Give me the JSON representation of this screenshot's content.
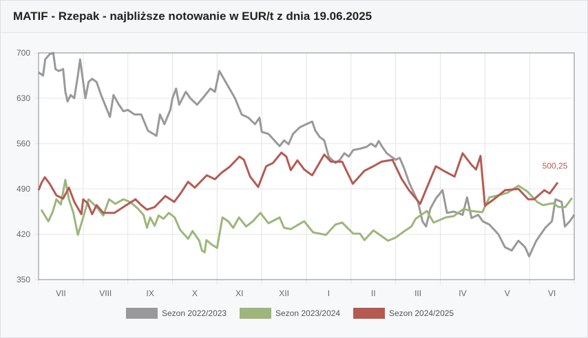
{
  "header": {
    "title": "MATIF - Rzepak - najbliższe notowanie w EUR/t z dnia 19.06.2025"
  },
  "chart_data": {
    "type": "line",
    "title": "MATIF - Rzepak - najbliższe notowanie w EUR/t z dnia 19.06.2025",
    "xlabel": "",
    "ylabel": "",
    "ylim": [
      350,
      700
    ],
    "yticks": [
      "350",
      "420",
      "490",
      "560",
      "630",
      "700"
    ],
    "yticks_values": [
      350,
      420,
      490,
      560,
      630,
      700
    ],
    "categories": [
      "VII",
      "VIII",
      "IX",
      "X",
      "XI",
      "XII",
      "I",
      "II",
      "III",
      "IV",
      "V",
      "VI"
    ],
    "x_unit": "months since start of season (0 = start of July)",
    "xlim": [
      0,
      12
    ],
    "grid": true,
    "legend_position": "bottom",
    "last_value_label": "500,25",
    "series": [
      {
        "name": "Sezon 2022/2023",
        "color": "#999999",
        "points": [
          [
            0,
            670
          ],
          [
            0.1,
            665
          ],
          [
            0.15,
            690
          ],
          [
            0.25,
            698
          ],
          [
            0.33,
            700
          ],
          [
            0.38,
            675
          ],
          [
            0.45,
            672
          ],
          [
            0.55,
            675
          ],
          [
            0.6,
            640
          ],
          [
            0.65,
            625
          ],
          [
            0.72,
            635
          ],
          [
            0.8,
            630
          ],
          [
            0.88,
            665
          ],
          [
            0.93,
            690
          ],
          [
            1.0,
            655
          ],
          [
            1.05,
            630
          ],
          [
            1.12,
            655
          ],
          [
            1.2,
            660
          ],
          [
            1.3,
            655
          ],
          [
            1.4,
            635
          ],
          [
            1.6,
            601
          ],
          [
            1.68,
            635
          ],
          [
            1.8,
            620
          ],
          [
            1.9,
            610
          ],
          [
            2.0,
            612
          ],
          [
            2.15,
            605
          ],
          [
            2.3,
            605
          ],
          [
            2.45,
            580
          ],
          [
            2.64,
            572
          ],
          [
            2.72,
            605
          ],
          [
            2.82,
            590
          ],
          [
            2.95,
            612
          ],
          [
            3.0,
            630
          ],
          [
            3.08,
            645
          ],
          [
            3.15,
            620
          ],
          [
            3.3,
            640
          ],
          [
            3.4,
            630
          ],
          [
            3.55,
            620
          ],
          [
            3.7,
            632
          ],
          [
            3.85,
            645
          ],
          [
            3.95,
            640
          ],
          [
            4.05,
            672
          ],
          [
            4.15,
            660
          ],
          [
            4.4,
            630
          ],
          [
            4.55,
            605
          ],
          [
            4.7,
            600
          ],
          [
            4.85,
            590
          ],
          [
            4.95,
            600
          ],
          [
            5.0,
            578
          ],
          [
            5.15,
            575
          ],
          [
            5.4,
            556
          ],
          [
            5.5,
            565
          ],
          [
            5.6,
            559
          ],
          [
            5.7,
            575
          ],
          [
            5.85,
            585
          ],
          [
            6.0,
            590
          ],
          [
            6.13,
            594
          ],
          [
            6.2,
            580
          ],
          [
            6.3,
            570
          ],
          [
            6.4,
            565
          ],
          [
            6.5,
            540
          ],
          [
            6.65,
            530
          ],
          [
            6.75,
            535
          ],
          [
            6.85,
            545
          ],
          [
            6.95,
            540
          ],
          [
            7.05,
            550
          ],
          [
            7.2,
            552
          ],
          [
            7.35,
            555
          ],
          [
            7.45,
            560
          ],
          [
            7.55,
            555
          ],
          [
            7.62,
            564
          ],
          [
            7.7,
            555
          ],
          [
            7.8,
            545
          ],
          [
            7.9,
            540
          ],
          [
            8.0,
            535
          ],
          [
            8.09,
            538
          ],
          [
            8.2,
            520
          ],
          [
            8.3,
            500
          ],
          [
            8.4,
            485
          ],
          [
            8.5,
            470
          ],
          [
            8.6,
            440
          ],
          [
            8.68,
            432
          ],
          [
            8.78,
            460
          ],
          [
            8.9,
            475
          ],
          [
            9.05,
            488
          ],
          [
            9.15,
            453
          ],
          [
            9.3,
            455
          ],
          [
            9.5,
            450
          ],
          [
            9.6,
            477
          ],
          [
            9.7,
            445
          ],
          [
            9.85,
            450
          ],
          [
            9.95,
            440
          ],
          [
            10.1,
            435
          ],
          [
            10.3,
            420
          ],
          [
            10.45,
            400
          ],
          [
            10.6,
            395
          ],
          [
            10.75,
            410
          ],
          [
            10.9,
            400
          ],
          [
            10.99,
            386
          ],
          [
            11.15,
            410
          ],
          [
            11.35,
            430
          ],
          [
            11.5,
            440
          ],
          [
            11.58,
            474
          ],
          [
            11.72,
            470
          ],
          [
            11.79,
            432
          ],
          [
            11.9,
            440
          ],
          [
            12.0,
            450
          ]
        ]
      },
      {
        "name": "Sezon 2023/2024",
        "color": "#9cb67b",
        "points": [
          [
            0.06,
            458
          ],
          [
            0.15,
            448
          ],
          [
            0.22,
            440
          ],
          [
            0.32,
            455
          ],
          [
            0.4,
            474
          ],
          [
            0.5,
            466
          ],
          [
            0.6,
            504
          ],
          [
            0.68,
            474
          ],
          [
            0.78,
            453
          ],
          [
            0.88,
            419
          ],
          [
            1.0,
            446
          ],
          [
            1.12,
            474
          ],
          [
            1.3,
            462
          ],
          [
            1.45,
            449
          ],
          [
            1.58,
            474
          ],
          [
            1.72,
            467
          ],
          [
            1.9,
            474
          ],
          [
            2.05,
            470
          ],
          [
            2.22,
            460
          ],
          [
            2.35,
            450
          ],
          [
            2.43,
            430
          ],
          [
            2.5,
            446
          ],
          [
            2.6,
            433
          ],
          [
            2.69,
            449
          ],
          [
            2.8,
            444
          ],
          [
            2.92,
            453
          ],
          [
            3.05,
            446
          ],
          [
            3.17,
            427
          ],
          [
            3.35,
            413
          ],
          [
            3.45,
            425
          ],
          [
            3.6,
            410
          ],
          [
            3.66,
            395
          ],
          [
            3.72,
            392
          ],
          [
            3.76,
            411
          ],
          [
            3.88,
            404
          ],
          [
            4.0,
            399
          ],
          [
            4.12,
            446
          ],
          [
            4.25,
            440
          ],
          [
            4.36,
            430
          ],
          [
            4.49,
            446
          ],
          [
            4.65,
            432
          ],
          [
            4.8,
            440
          ],
          [
            4.97,
            453
          ],
          [
            5.15,
            437
          ],
          [
            5.4,
            446
          ],
          [
            5.5,
            430
          ],
          [
            5.65,
            428
          ],
          [
            5.95,
            440
          ],
          [
            6.15,
            423
          ],
          [
            6.44,
            419
          ],
          [
            6.65,
            435
          ],
          [
            6.8,
            438
          ],
          [
            7.05,
            421
          ],
          [
            7.2,
            421
          ],
          [
            7.3,
            411
          ],
          [
            7.5,
            426
          ],
          [
            7.83,
            410
          ],
          [
            8.0,
            415
          ],
          [
            8.2,
            425
          ],
          [
            8.35,
            432
          ],
          [
            8.45,
            444
          ],
          [
            8.7,
            456
          ],
          [
            8.85,
            438
          ],
          [
            9.12,
            446
          ],
          [
            9.3,
            448
          ],
          [
            9.52,
            459
          ],
          [
            9.7,
            456
          ],
          [
            9.94,
            454
          ],
          [
            10.1,
            477
          ],
          [
            10.3,
            480
          ],
          [
            10.5,
            484
          ],
          [
            10.75,
            495
          ],
          [
            10.95,
            486
          ],
          [
            11.17,
            470
          ],
          [
            11.3,
            465
          ],
          [
            11.53,
            468
          ],
          [
            11.65,
            462
          ],
          [
            11.8,
            462
          ],
          [
            11.95,
            476
          ]
        ]
      },
      {
        "name": "Sezon 2024/2025",
        "color": "#b55a52",
        "points": [
          [
            0,
            488
          ],
          [
            0.07,
            500
          ],
          [
            0.14,
            508
          ],
          [
            0.25,
            498
          ],
          [
            0.4,
            480
          ],
          [
            0.55,
            475
          ],
          [
            0.68,
            492
          ],
          [
            0.8,
            470
          ],
          [
            0.96,
            451
          ],
          [
            1.0,
            474
          ],
          [
            1.1,
            468
          ],
          [
            1.2,
            451
          ],
          [
            1.3,
            465
          ],
          [
            1.45,
            453
          ],
          [
            1.7,
            453
          ],
          [
            1.9,
            462
          ],
          [
            2.17,
            474
          ],
          [
            2.3,
            465
          ],
          [
            2.43,
            458
          ],
          [
            2.6,
            462
          ],
          [
            2.84,
            479
          ],
          [
            3.04,
            470
          ],
          [
            3.2,
            485
          ],
          [
            3.35,
            501
          ],
          [
            3.5,
            492
          ],
          [
            3.77,
            511
          ],
          [
            3.95,
            505
          ],
          [
            4.1,
            515
          ],
          [
            4.28,
            524
          ],
          [
            4.5,
            540
          ],
          [
            4.6,
            535
          ],
          [
            4.74,
            509
          ],
          [
            4.92,
            493
          ],
          [
            5.1,
            525
          ],
          [
            5.25,
            530
          ],
          [
            5.44,
            546
          ],
          [
            5.55,
            540
          ],
          [
            5.65,
            519
          ],
          [
            5.8,
            534
          ],
          [
            5.95,
            520
          ],
          [
            6.13,
            511
          ],
          [
            6.4,
            543
          ],
          [
            6.55,
            532
          ],
          [
            6.8,
            532
          ],
          [
            7.04,
            498
          ],
          [
            7.3,
            518
          ],
          [
            7.5,
            525
          ],
          [
            7.68,
            532
          ],
          [
            7.93,
            535
          ],
          [
            8.13,
            506
          ],
          [
            8.3,
            488
          ],
          [
            8.55,
            467
          ],
          [
            8.7,
            492
          ],
          [
            8.9,
            525
          ],
          [
            9.1,
            517
          ],
          [
            9.32,
            509
          ],
          [
            9.5,
            545
          ],
          [
            9.7,
            527
          ],
          [
            9.8,
            520
          ],
          [
            9.9,
            541
          ],
          [
            10.0,
            464
          ],
          [
            10.2,
            474
          ],
          [
            10.45,
            488
          ],
          [
            10.75,
            490
          ],
          [
            10.97,
            474
          ],
          [
            11.1,
            474
          ],
          [
            11.33,
            488
          ],
          [
            11.45,
            483
          ],
          [
            11.63,
            500
          ]
        ]
      }
    ]
  }
}
